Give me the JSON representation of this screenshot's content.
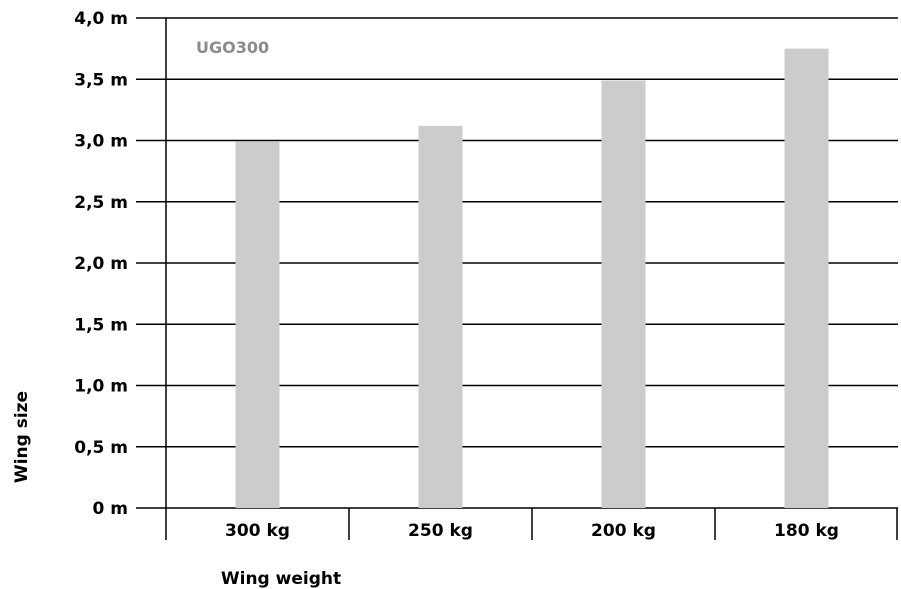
{
  "chart_data": {
    "type": "bar",
    "categories": [
      "300 kg",
      "250 kg",
      "200 kg",
      "180 kg"
    ],
    "series": [
      {
        "name": "UGO300",
        "values": [
          2.99,
          3.12,
          3.49,
          3.75
        ]
      }
    ],
    "yticks": [
      0,
      0.5,
      1.0,
      1.5,
      2.0,
      2.5,
      3.0,
      3.5,
      4.0
    ],
    "ytick_labels": [
      "0 m",
      "0,5 m",
      "1,0 m",
      "1,5 m",
      "2,0 m",
      "2,5 m",
      "3,0 m",
      "3,5 m",
      "4,0 m"
    ],
    "xlabel": "Wing weight",
    "ylabel": "Wing size",
    "ylim": [
      0,
      4.0
    ],
    "grid": true,
    "legend_position": "top-left",
    "colors": {
      "bar": "#cccccc",
      "legend_text": "#8c8c8c",
      "axis": "#000000"
    }
  }
}
